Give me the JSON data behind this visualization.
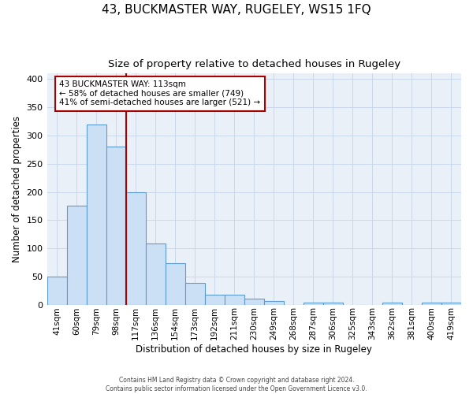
{
  "title": "43, BUCKMASTER WAY, RUGELEY, WS15 1FQ",
  "subtitle": "Size of property relative to detached houses in Rugeley",
  "xlabel": "Distribution of detached houses by size in Rugeley",
  "ylabel": "Number of detached properties",
  "bar_labels": [
    "41sqm",
    "60sqm",
    "79sqm",
    "98sqm",
    "117sqm",
    "136sqm",
    "154sqm",
    "173sqm",
    "192sqm",
    "211sqm",
    "230sqm",
    "249sqm",
    "268sqm",
    "287sqm",
    "306sqm",
    "325sqm",
    "343sqm",
    "362sqm",
    "381sqm",
    "400sqm",
    "419sqm"
  ],
  "bar_values": [
    50,
    175,
    320,
    280,
    200,
    108,
    74,
    39,
    18,
    17,
    10,
    6,
    0,
    4,
    3,
    0,
    0,
    4,
    0,
    3,
    3
  ],
  "bar_color": "#cce0f5",
  "bar_edge_color": "#5b9bd5",
  "vline_color": "#aa0000",
  "annotation_text": "43 BUCKMASTER WAY: 113sqm\n← 58% of detached houses are smaller (749)\n41% of semi-detached houses are larger (521) →",
  "annotation_box_color": "#ffffff",
  "annotation_box_edge": "#aa0000",
  "footer_line1": "Contains HM Land Registry data © Crown copyright and database right 2024.",
  "footer_line2": "Contains public sector information licensed under the Open Government Licence v3.0.",
  "ylim": [
    0,
    410
  ],
  "grid_color": "#c8d8ea",
  "background_color": "#eaf0f8",
  "title_fontsize": 11,
  "subtitle_fontsize": 9.5
}
